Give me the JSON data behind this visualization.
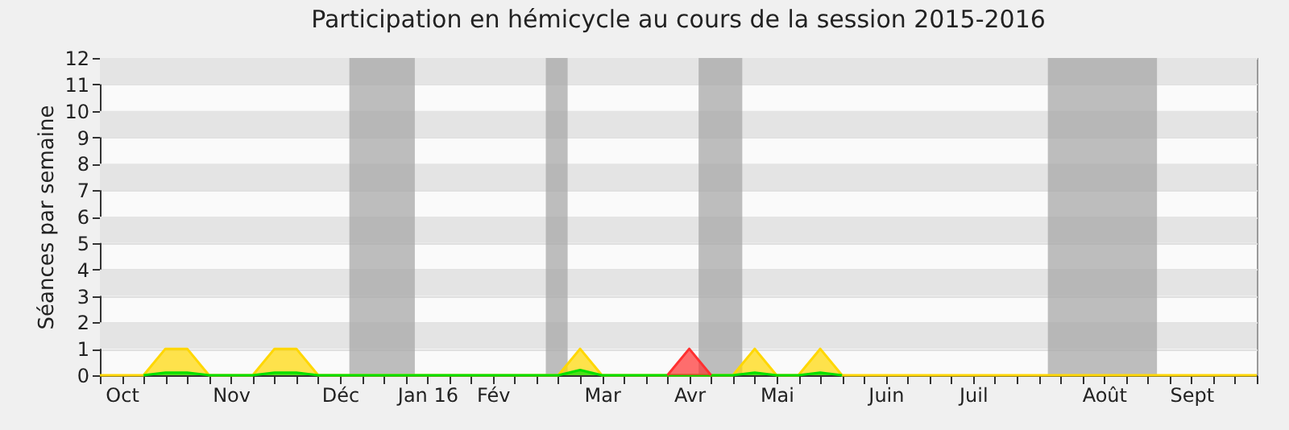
{
  "chart_data": {
    "type": "area",
    "title": "Participation en hémicycle au cours de la session 2015-2016",
    "ylabel": "Séances par semaine",
    "x": [
      "2015-09-28",
      "2015-10-05",
      "2015-10-12",
      "2015-10-19",
      "2015-10-26",
      "2015-11-02",
      "2015-11-09",
      "2015-11-16",
      "2015-11-23",
      "2015-11-30",
      "2015-12-07",
      "2015-12-14",
      "2015-12-21",
      "2015-12-28",
      "2016-01-04",
      "2016-01-11",
      "2016-01-18",
      "2016-01-25",
      "2016-02-01",
      "2016-02-08",
      "2016-02-15",
      "2016-02-22",
      "2016-02-29",
      "2016-03-07",
      "2016-03-14",
      "2016-03-21",
      "2016-03-28",
      "2016-04-04",
      "2016-04-11",
      "2016-04-18",
      "2016-04-25",
      "2016-05-02",
      "2016-05-09",
      "2016-05-16",
      "2016-05-23",
      "2016-05-30",
      "2016-06-06",
      "2016-06-13",
      "2016-06-20",
      "2016-06-27",
      "2016-07-04",
      "2016-07-11",
      "2016-07-18",
      "2016-07-25",
      "2016-08-01",
      "2016-08-08",
      "2016-08-15",
      "2016-08-22",
      "2016-08-29",
      "2016-09-05",
      "2016-09-12",
      "2016-09-19",
      "2016-09-26",
      "2016-10-03"
    ],
    "series": [
      {
        "color": "#ffd700",
        "values": [
          0,
          0,
          0,
          1,
          1,
          0,
          0,
          0,
          1,
          1,
          0,
          0,
          0,
          0,
          0,
          0,
          0,
          0,
          0,
          0,
          0,
          0,
          1,
          0,
          0,
          0,
          0,
          0,
          0,
          0,
          1,
          0,
          0,
          1,
          0,
          0,
          0,
          0,
          0,
          0,
          0,
          0,
          0,
          0,
          0,
          0,
          0,
          0,
          0,
          0,
          0,
          0,
          0,
          0
        ]
      },
      {
        "color": "#00e000",
        "values": [
          null,
          null,
          0,
          0.1,
          0.1,
          0,
          null,
          0,
          0.1,
          0.1,
          0,
          null,
          null,
          null,
          null,
          null,
          null,
          null,
          null,
          null,
          null,
          0,
          0.2,
          0,
          null,
          null,
          null,
          null,
          null,
          0,
          0.1,
          0,
          0,
          0.1,
          0,
          null,
          null,
          null,
          null,
          null,
          null,
          null,
          null,
          null,
          null,
          null,
          null,
          null,
          null,
          null,
          null,
          null,
          null,
          null
        ]
      },
      {
        "color": "#ff3030",
        "values": [
          null,
          null,
          null,
          null,
          null,
          null,
          null,
          null,
          null,
          null,
          null,
          null,
          null,
          null,
          null,
          null,
          null,
          null,
          null,
          null,
          null,
          null,
          null,
          null,
          null,
          null,
          0,
          1,
          0,
          null,
          null,
          null,
          null,
          null,
          null,
          null,
          null,
          null,
          null,
          null,
          null,
          null,
          null,
          null,
          null,
          null,
          null,
          null,
          null,
          null,
          null,
          null,
          null,
          null
        ]
      }
    ],
    "xlim": [
      "2015-09-28",
      "2016-10-03"
    ],
    "xticks": [
      {
        "value": "2015-09-28",
        "label": null
      },
      {
        "value": "2015-10-05",
        "label": "Oct"
      },
      {
        "value": "2015-10-12",
        "label": null
      },
      {
        "value": "2015-10-19",
        "label": null
      },
      {
        "value": "2015-10-26",
        "label": null
      },
      {
        "value": "2015-11-02",
        "label": null
      },
      {
        "value": "2015-11-09",
        "label": "Nov"
      },
      {
        "value": "2015-11-16",
        "label": null
      },
      {
        "value": "2015-11-23",
        "label": null
      },
      {
        "value": "2015-11-30",
        "label": null
      },
      {
        "value": "2015-12-07",
        "label": null
      },
      {
        "value": "2015-12-14",
        "label": "Déc"
      },
      {
        "value": "2015-12-21",
        "label": null
      },
      {
        "value": "2015-12-28",
        "label": null
      },
      {
        "value": "2016-01-04",
        "label": null
      },
      {
        "value": "2016-01-11",
        "label": "Jan 16"
      },
      {
        "value": "2016-01-18",
        "label": null
      },
      {
        "value": "2016-01-25",
        "label": null
      },
      {
        "value": "2016-02-01",
        "label": "Fév"
      },
      {
        "value": "2016-02-08",
        "label": null
      },
      {
        "value": "2016-02-15",
        "label": null
      },
      {
        "value": "2016-02-22",
        "label": null
      },
      {
        "value": "2016-02-29",
        "label": null
      },
      {
        "value": "2016-03-07",
        "label": "Mar"
      },
      {
        "value": "2016-03-14",
        "label": null
      },
      {
        "value": "2016-03-21",
        "label": null
      },
      {
        "value": "2016-03-28",
        "label": null
      },
      {
        "value": "2016-04-04",
        "label": "Avr"
      },
      {
        "value": "2016-04-11",
        "label": null
      },
      {
        "value": "2016-04-18",
        "label": null
      },
      {
        "value": "2016-04-25",
        "label": null
      },
      {
        "value": "2016-05-02",
        "label": "Mai"
      },
      {
        "value": "2016-05-09",
        "label": null
      },
      {
        "value": "2016-05-16",
        "label": null
      },
      {
        "value": "2016-05-23",
        "label": null
      },
      {
        "value": "2016-05-30",
        "label": null
      },
      {
        "value": "2016-06-06",
        "label": "Juin"
      },
      {
        "value": "2016-06-13",
        "label": null
      },
      {
        "value": "2016-06-20",
        "label": null
      },
      {
        "value": "2016-06-27",
        "label": null
      },
      {
        "value": "2016-07-04",
        "label": "Juil"
      },
      {
        "value": "2016-07-11",
        "label": null
      },
      {
        "value": "2016-07-18",
        "label": null
      },
      {
        "value": "2016-07-25",
        "label": null
      },
      {
        "value": "2016-08-01",
        "label": null
      },
      {
        "value": "2016-08-08",
        "label": null
      },
      {
        "value": "2016-08-15",
        "label": "Août"
      },
      {
        "value": "2016-08-22",
        "label": null
      },
      {
        "value": "2016-08-29",
        "label": null
      },
      {
        "value": "2016-09-05",
        "label": null
      },
      {
        "value": "2016-09-12",
        "label": "Sept"
      },
      {
        "value": "2016-09-19",
        "label": null
      },
      {
        "value": "2016-09-26",
        "label": null
      },
      {
        "value": "2016-10-03",
        "label": null
      }
    ],
    "ylim": [
      0,
      12
    ],
    "yticks": [
      0,
      1,
      2,
      3,
      4,
      5,
      6,
      7,
      8,
      9,
      10,
      11,
      12
    ],
    "grid": "y",
    "bands": [
      {
        "axis": "x",
        "from": "2015-12-17",
        "to": "2016-01-07",
        "color": "#a8a8a8"
      },
      {
        "axis": "x",
        "from": "2016-02-18",
        "to": "2016-02-25",
        "color": "#a8a8a8"
      },
      {
        "axis": "x",
        "from": "2016-04-07",
        "to": "2016-04-21",
        "color": "#a8a8a8"
      },
      {
        "axis": "x",
        "from": "2016-07-28",
        "to": "2016-09-01",
        "color": "#a8a8a8"
      }
    ]
  }
}
